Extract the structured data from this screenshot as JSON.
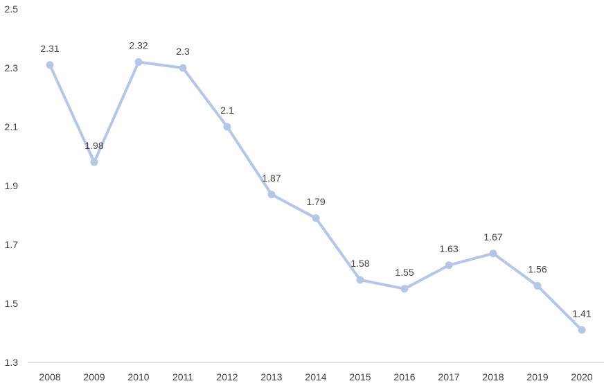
{
  "chart_data": {
    "type": "line",
    "title": "",
    "xlabel": "",
    "ylabel": "",
    "categories": [
      "2008",
      "2009",
      "2010",
      "2011",
      "2012",
      "2013",
      "2014",
      "2015",
      "2016",
      "2017",
      "2018",
      "2019",
      "2020"
    ],
    "series": [
      {
        "values": [
          2.31,
          1.98,
          2.32,
          2.3,
          2.1,
          1.87,
          1.79,
          1.58,
          1.55,
          1.63,
          1.67,
          1.56,
          1.41
        ]
      }
    ],
    "data_labels": [
      "2.31",
      "1.98",
      "2.32",
      "2.3",
      "2.1",
      "1.87",
      "1.79",
      "1.58",
      "1.55",
      "1.63",
      "1.67",
      "1.56",
      "1.41"
    ],
    "ylim": [
      1.3,
      2.5
    ],
    "yticks": [
      "1.3",
      "1.5",
      "1.7",
      "1.9",
      "2.1",
      "2.3",
      "2.5"
    ],
    "grid": false,
    "legend": "none",
    "colors": {
      "series": "#b4c7e7",
      "axis": "#d9d9d9",
      "text": "#404040"
    }
  }
}
